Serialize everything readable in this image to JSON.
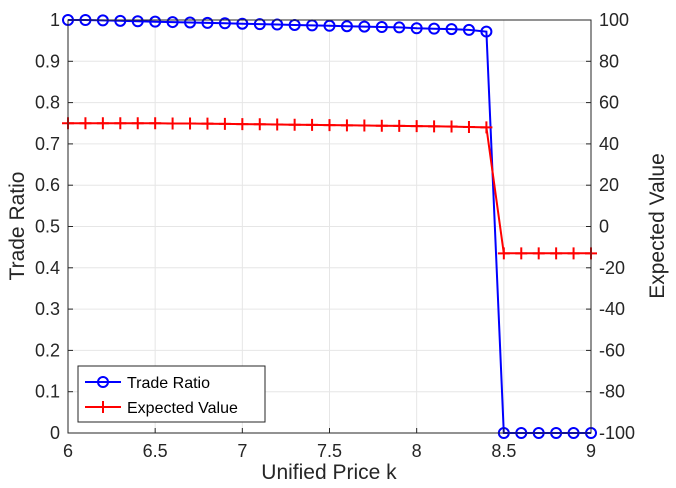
{
  "chart_data": {
    "type": "line",
    "xlabel": "Unified Price k",
    "ylabel_left": "Trade Ratio",
    "ylabel_right": "Expected Value",
    "xlim": [
      6,
      9
    ],
    "ylim_left": [
      0,
      1
    ],
    "ylim_right": [
      -100,
      100
    ],
    "x_ticks": [
      "6",
      "6.5",
      "7",
      "7.5",
      "8",
      "8.5",
      "9"
    ],
    "y_left_ticks": [
      "0",
      "0.1",
      "0.2",
      "0.3",
      "0.4",
      "0.5",
      "0.6",
      "0.7",
      "0.8",
      "0.9",
      "1"
    ],
    "y_right_ticks": [
      "-100",
      "-80",
      "-60",
      "-40",
      "-20",
      "0",
      "20",
      "40",
      "60",
      "80",
      "100"
    ],
    "grid": true,
    "legend_position": "bottom-left",
    "x": [
      6.0,
      6.1,
      6.2,
      6.3,
      6.4,
      6.5,
      6.6,
      6.7,
      6.8,
      6.9,
      7.0,
      7.1,
      7.2,
      7.3,
      7.4,
      7.5,
      7.6,
      7.7,
      7.8,
      7.9,
      8.0,
      8.1,
      8.2,
      8.3,
      8.4,
      8.5,
      8.6,
      8.7,
      8.8,
      8.9,
      9.0
    ],
    "series": [
      {
        "name": "Trade Ratio",
        "axis": "left",
        "color": "#0000ff",
        "marker": "circle",
        "values": [
          1.0,
          1.0,
          0.999,
          0.998,
          0.997,
          0.996,
          0.995,
          0.994,
          0.993,
          0.992,
          0.991,
          0.99,
          0.989,
          0.988,
          0.987,
          0.986,
          0.985,
          0.984,
          0.983,
          0.982,
          0.98,
          0.979,
          0.978,
          0.976,
          0.972,
          0.0,
          0.0,
          0.0,
          0.0,
          0.0,
          0.0
        ]
      },
      {
        "name": "Expected Value",
        "axis": "right",
        "color": "#ff0000",
        "marker": "plus",
        "values": [
          50,
          50,
          50,
          50,
          50,
          50,
          49.9,
          49.9,
          49.8,
          49.7,
          49.6,
          49.5,
          49.4,
          49.3,
          49.2,
          49.1,
          49.0,
          48.9,
          48.8,
          48.7,
          48.6,
          48.5,
          48.4,
          48.2,
          48.0,
          -13,
          -13,
          -13,
          -13,
          -13,
          -13
        ]
      }
    ]
  }
}
